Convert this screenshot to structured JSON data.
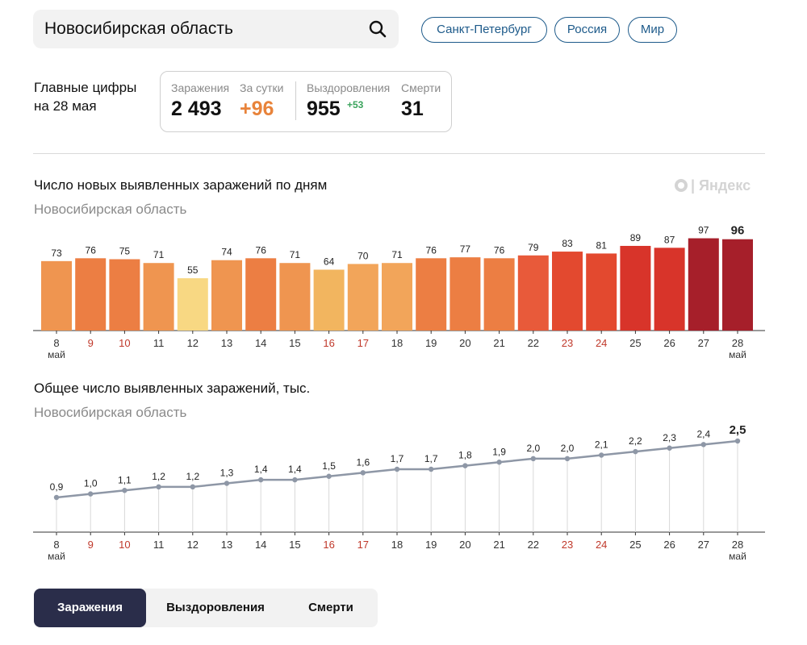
{
  "search": {
    "value": "Новосибирская область"
  },
  "region_links": [
    "Санкт-Петербург",
    "Россия",
    "Мир"
  ],
  "headline": {
    "label_line1": "Главные цифры",
    "label_line2": "на 28 мая",
    "infected_label": "Заражения",
    "infected_value": "2 493",
    "day_label": "За сутки",
    "day_value": "+96",
    "recovered_label": "Выздоровления",
    "recovered_value": "955",
    "recovered_delta": "+53",
    "deaths_label": "Смерти",
    "deaths_value": "31"
  },
  "watermark": "Яндекс",
  "colors": {
    "accent_orange": "#e8833a",
    "weekend_red": "#c0392b",
    "link_blue": "#1d5a8a",
    "line_gray": "#8e97a6",
    "tab_active": "#2a2d4a"
  },
  "chart_data": [
    {
      "type": "bar",
      "title": "Число новых выявленных заражений по дням",
      "subtitle": "Новосибирская область",
      "categories": [
        "8",
        "9",
        "10",
        "11",
        "12",
        "13",
        "14",
        "15",
        "16",
        "17",
        "18",
        "19",
        "20",
        "21",
        "22",
        "23",
        "24",
        "25",
        "26",
        "27",
        "28"
      ],
      "weekend": [
        false,
        true,
        true,
        false,
        false,
        false,
        false,
        false,
        true,
        true,
        false,
        false,
        false,
        false,
        false,
        true,
        true,
        false,
        false,
        false,
        false
      ],
      "first_month_label": "май",
      "last_month_label": "май",
      "values": [
        73,
        76,
        75,
        71,
        55,
        74,
        76,
        71,
        64,
        70,
        71,
        76,
        77,
        76,
        79,
        83,
        81,
        89,
        87,
        97,
        96
      ],
      "colors": [
        "#ef9550",
        "#ec7e43",
        "#ec7e43",
        "#ef9550",
        "#f8d883",
        "#ef9550",
        "#ec7e43",
        "#ef9550",
        "#f2b55f",
        "#f2a55a",
        "#f2a55a",
        "#ec7e43",
        "#ec7e43",
        "#ec7e43",
        "#e85a3a",
        "#e3492f",
        "#e3492f",
        "#d8342a",
        "#d8342a",
        "#a61f2a",
        "#a61f2a"
      ],
      "ylim": [
        0,
        100
      ]
    },
    {
      "type": "line",
      "title": "Общее число выявленных заражений, тыс.",
      "subtitle": "Новосибирская область",
      "categories": [
        "8",
        "9",
        "10",
        "11",
        "12",
        "13",
        "14",
        "15",
        "16",
        "17",
        "18",
        "19",
        "20",
        "21",
        "22",
        "23",
        "24",
        "25",
        "26",
        "27",
        "28"
      ],
      "values": [
        0.9,
        1.0,
        1.1,
        1.2,
        1.2,
        1.3,
        1.4,
        1.4,
        1.5,
        1.6,
        1.7,
        1.7,
        1.8,
        1.9,
        2.0,
        2.0,
        2.1,
        2.2,
        2.3,
        2.4,
        2.5
      ],
      "labels": [
        "0,9",
        "1,0",
        "1,1",
        "1,2",
        "1,2",
        "1,3",
        "1,4",
        "1,4",
        "1,5",
        "1,6",
        "1,7",
        "1,7",
        "1,8",
        "1,9",
        "2,0",
        "2,0",
        "2,1",
        "2,2",
        "2,3",
        "2,4",
        "2,5"
      ],
      "ylim": [
        0,
        3
      ]
    }
  ],
  "tabs": [
    {
      "label": "Заражения",
      "active": true
    },
    {
      "label": "Выздоровления",
      "active": false
    },
    {
      "label": "Смерти",
      "active": false
    }
  ]
}
